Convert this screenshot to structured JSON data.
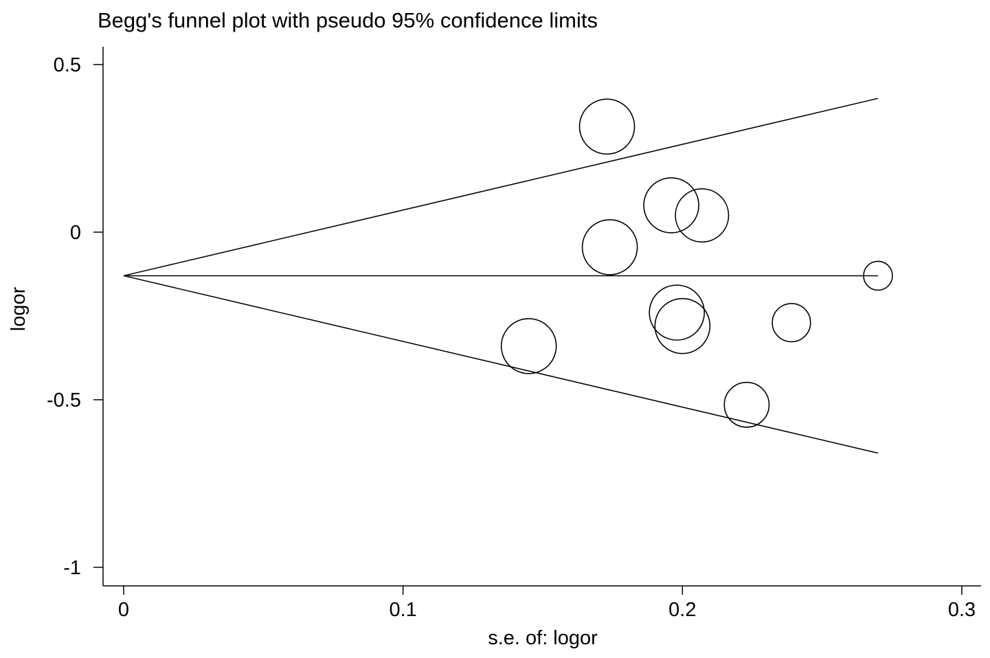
{
  "chart_data": {
    "type": "scatter",
    "title": "Begg's funnel plot with pseudo 95% confidence limits",
    "xlabel": "s.e. of: logor",
    "ylabel": "logor",
    "xlim": [
      0,
      0.3
    ],
    "ylim": [
      -1,
      0.5
    ],
    "x_ticks": [
      {
        "value": 0,
        "label": "0"
      },
      {
        "value": 0.1,
        "label": "0.1"
      },
      {
        "value": 0.2,
        "label": "0.2"
      },
      {
        "value": 0.3,
        "label": "0.3"
      }
    ],
    "y_ticks": [
      {
        "value": 0.5,
        "label": "0.5"
      },
      {
        "value": 0,
        "label": "0"
      },
      {
        "value": -0.5,
        "label": "-0.5"
      },
      {
        "value": -1,
        "label": "-1"
      }
    ],
    "pooled_estimate": -0.13,
    "pseudo_ci_max_se": 0.27,
    "points": [
      {
        "x": 0.173,
        "y": 0.315
      },
      {
        "x": 0.196,
        "y": 0.08
      },
      {
        "x": 0.207,
        "y": 0.05
      },
      {
        "x": 0.174,
        "y": -0.045
      },
      {
        "x": 0.27,
        "y": -0.13
      },
      {
        "x": 0.198,
        "y": -0.24
      },
      {
        "x": 0.2,
        "y": -0.28
      },
      {
        "x": 0.239,
        "y": -0.27
      },
      {
        "x": 0.145,
        "y": -0.34
      },
      {
        "x": 0.223,
        "y": -0.515
      }
    ],
    "grid": false
  }
}
